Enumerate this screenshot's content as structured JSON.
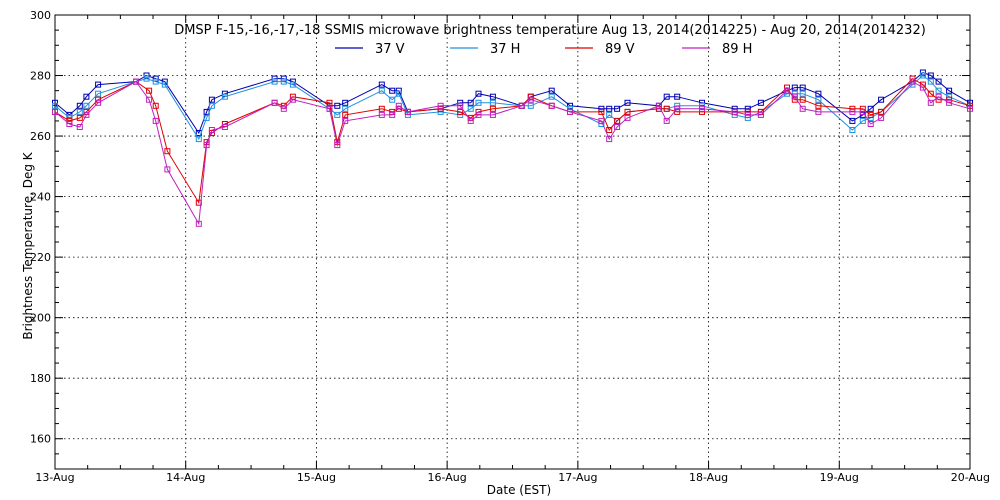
{
  "chart_data": {
    "type": "line",
    "title": "DMSP F-15,-16,-17,-18 SSMIS microwave brightness temperature Aug 13, 2014(2014225) - Aug 20, 2014(2014232)",
    "xlabel": "Date (EST)",
    "ylabel": "Brightness Temperature, Deg K",
    "xlim": [
      0,
      7
    ],
    "ylim": [
      150,
      300
    ],
    "x_ticks": [
      "13-Aug",
      "14-Aug",
      "15-Aug",
      "16-Aug",
      "17-Aug",
      "18-Aug",
      "19-Aug",
      "20-Aug"
    ],
    "y_ticks": [
      160,
      180,
      200,
      220,
      240,
      260,
      280,
      300
    ],
    "grid": true,
    "legend_position": "top-center",
    "series": [
      {
        "name": "37 V",
        "color": "#0000b0",
        "x": [
          0,
          0.11,
          0.19,
          0.24,
          0.33,
          0.62,
          0.7,
          0.77,
          0.84,
          1.1,
          1.16,
          1.2,
          1.3,
          1.68,
          1.75,
          1.82,
          2.1,
          2.16,
          2.22,
          2.5,
          2.58,
          2.63,
          2.7,
          2.95,
          3.1,
          3.18,
          3.24,
          3.35,
          3.57,
          3.64,
          3.8,
          3.94,
          4.18,
          4.24,
          4.3,
          4.38,
          4.62,
          4.68,
          4.76,
          4.95,
          5.2,
          5.3,
          5.4,
          5.6,
          5.66,
          5.72,
          5.84,
          6.1,
          6.18,
          6.24,
          6.32,
          6.56,
          6.64,
          6.7,
          6.76,
          6.84,
          7
        ],
        "y": [
          271,
          267,
          270,
          273,
          277,
          278,
          280,
          279,
          278,
          261,
          268,
          272,
          274,
          279,
          279,
          278,
          270,
          270,
          271,
          277,
          275,
          275,
          268,
          269,
          271,
          271,
          274,
          273,
          270,
          273,
          275,
          270,
          269,
          269,
          269,
          271,
          270,
          273,
          273,
          271,
          269,
          269,
          271,
          275,
          276,
          276,
          274,
          265,
          267,
          269,
          272,
          278,
          281,
          280,
          278,
          275,
          271
        ]
      },
      {
        "name": "37 H",
        "color": "#2090e0",
        "x": [
          0,
          0.11,
          0.19,
          0.24,
          0.33,
          0.62,
          0.7,
          0.77,
          0.84,
          1.1,
          1.16,
          1.2,
          1.3,
          1.68,
          1.75,
          1.82,
          2.1,
          2.16,
          2.22,
          2.5,
          2.58,
          2.63,
          2.7,
          2.95,
          3.1,
          3.18,
          3.24,
          3.35,
          3.57,
          3.64,
          3.8,
          3.94,
          4.18,
          4.24,
          4.3,
          4.38,
          4.62,
          4.68,
          4.76,
          4.95,
          5.2,
          5.3,
          5.4,
          5.6,
          5.66,
          5.72,
          5.84,
          6.1,
          6.18,
          6.24,
          6.32,
          6.56,
          6.64,
          6.7,
          6.76,
          6.84,
          7
        ],
        "y": [
          270,
          266,
          268,
          270,
          274,
          278,
          279,
          278,
          277,
          259,
          266,
          270,
          273,
          278,
          278,
          277,
          269,
          267,
          269,
          275,
          272,
          274,
          267,
          268,
          267,
          269,
          271,
          271,
          270,
          270,
          273,
          269,
          264,
          267,
          265,
          268,
          269,
          269,
          270,
          270,
          267,
          266,
          268,
          274,
          274,
          274,
          272,
          262,
          265,
          266,
          268,
          277,
          280,
          278,
          275,
          273,
          270
        ]
      },
      {
        "name": "89 V",
        "color": "#e00000",
        "x": [
          0,
          0.11,
          0.19,
          0.24,
          0.33,
          0.62,
          0.72,
          0.77,
          0.86,
          1.1,
          1.16,
          1.2,
          1.3,
          1.68,
          1.75,
          1.82,
          2.1,
          2.16,
          2.22,
          2.5,
          2.58,
          2.63,
          2.7,
          2.95,
          3.1,
          3.18,
          3.24,
          3.35,
          3.57,
          3.64,
          3.8,
          3.94,
          4.18,
          4.24,
          4.3,
          4.38,
          4.62,
          4.68,
          4.76,
          4.95,
          5.2,
          5.3,
          5.4,
          5.6,
          5.66,
          5.72,
          5.84,
          6.1,
          6.18,
          6.24,
          6.32,
          6.56,
          6.64,
          6.7,
          6.76,
          6.84,
          7
        ],
        "y": [
          268,
          265,
          266,
          268,
          272,
          278,
          275,
          270,
          255,
          238,
          258,
          261,
          264,
          271,
          270,
          273,
          271,
          258,
          267,
          269,
          268,
          269,
          268,
          269,
          268,
          266,
          268,
          269,
          270,
          273,
          270,
          268,
          268,
          262,
          265,
          268,
          269,
          269,
          268,
          268,
          268,
          268,
          268,
          276,
          272,
          272,
          270,
          269,
          269,
          267,
          268,
          279,
          277,
          274,
          272,
          272,
          270
        ]
      },
      {
        "name": "89 H",
        "color": "#c020c0",
        "x": [
          0,
          0.11,
          0.19,
          0.24,
          0.33,
          0.62,
          0.72,
          0.77,
          0.86,
          1.1,
          1.16,
          1.2,
          1.3,
          1.68,
          1.75,
          1.82,
          2.1,
          2.16,
          2.22,
          2.5,
          2.58,
          2.63,
          2.7,
          2.95,
          3.1,
          3.18,
          3.24,
          3.35,
          3.57,
          3.64,
          3.8,
          3.94,
          4.18,
          4.24,
          4.3,
          4.38,
          4.62,
          4.68,
          4.76,
          4.95,
          5.2,
          5.3,
          5.4,
          5.6,
          5.66,
          5.72,
          5.84,
          6.1,
          6.18,
          6.24,
          6.32,
          6.56,
          6.64,
          6.7,
          6.76,
          6.84,
          7
        ],
        "y": [
          268,
          264,
          263,
          267,
          271,
          278,
          272,
          265,
          249,
          231,
          257,
          262,
          263,
          271,
          269,
          272,
          269,
          257,
          265,
          267,
          267,
          270,
          268,
          270,
          270,
          265,
          267,
          267,
          270,
          272,
          270,
          268,
          265,
          259,
          263,
          266,
          270,
          265,
          269,
          269,
          268,
          267,
          267,
          275,
          273,
          269,
          268,
          268,
          268,
          264,
          266,
          278,
          276,
          271,
          273,
          271,
          269
        ]
      }
    ]
  }
}
